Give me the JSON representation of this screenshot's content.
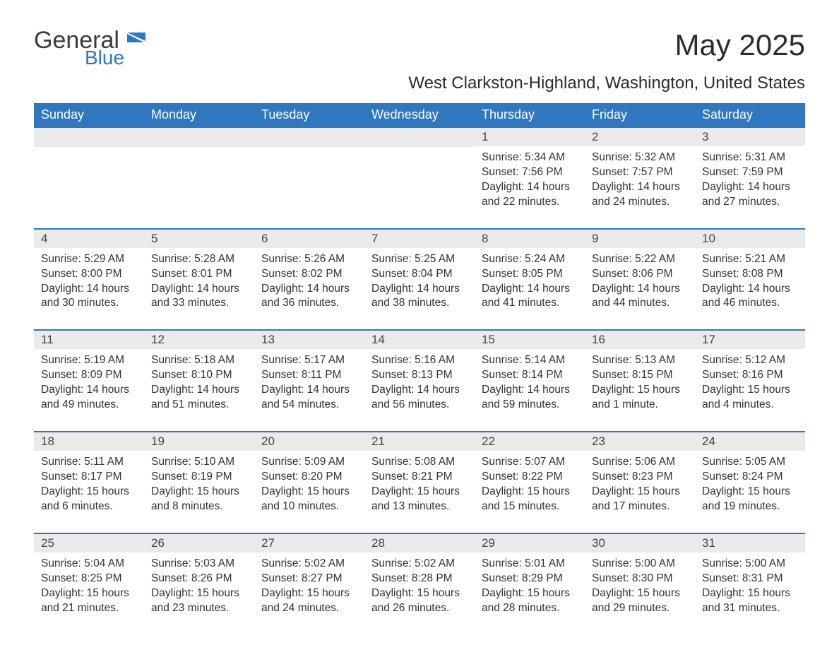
{
  "brand": {
    "general": "General",
    "blue": "Blue"
  },
  "title": "May 2025",
  "subtitle": "West Clarkston-Highland, Washington, United States",
  "colors": {
    "header_bg": "#2f78c0",
    "header_text": "#ffffff",
    "daynum_bg": "#eaeaea",
    "border": "#2f78c0",
    "text": "#333333",
    "logo_blue": "#2f78c0"
  },
  "dayHeaders": [
    "Sunday",
    "Monday",
    "Tuesday",
    "Wednesday",
    "Thursday",
    "Friday",
    "Saturday"
  ],
  "labels": {
    "sunrise": "Sunrise:",
    "sunset": "Sunset:",
    "daylight": "Daylight:"
  },
  "weeks": [
    [
      null,
      null,
      null,
      null,
      {
        "n": "1",
        "sunrise": "5:34 AM",
        "sunset": "7:56 PM",
        "daylight": "14 hours and 22 minutes."
      },
      {
        "n": "2",
        "sunrise": "5:32 AM",
        "sunset": "7:57 PM",
        "daylight": "14 hours and 24 minutes."
      },
      {
        "n": "3",
        "sunrise": "5:31 AM",
        "sunset": "7:59 PM",
        "daylight": "14 hours and 27 minutes."
      }
    ],
    [
      {
        "n": "4",
        "sunrise": "5:29 AM",
        "sunset": "8:00 PM",
        "daylight": "14 hours and 30 minutes."
      },
      {
        "n": "5",
        "sunrise": "5:28 AM",
        "sunset": "8:01 PM",
        "daylight": "14 hours and 33 minutes."
      },
      {
        "n": "6",
        "sunrise": "5:26 AM",
        "sunset": "8:02 PM",
        "daylight": "14 hours and 36 minutes."
      },
      {
        "n": "7",
        "sunrise": "5:25 AM",
        "sunset": "8:04 PM",
        "daylight": "14 hours and 38 minutes."
      },
      {
        "n": "8",
        "sunrise": "5:24 AM",
        "sunset": "8:05 PM",
        "daylight": "14 hours and 41 minutes."
      },
      {
        "n": "9",
        "sunrise": "5:22 AM",
        "sunset": "8:06 PM",
        "daylight": "14 hours and 44 minutes."
      },
      {
        "n": "10",
        "sunrise": "5:21 AM",
        "sunset": "8:08 PM",
        "daylight": "14 hours and 46 minutes."
      }
    ],
    [
      {
        "n": "11",
        "sunrise": "5:19 AM",
        "sunset": "8:09 PM",
        "daylight": "14 hours and 49 minutes."
      },
      {
        "n": "12",
        "sunrise": "5:18 AM",
        "sunset": "8:10 PM",
        "daylight": "14 hours and 51 minutes."
      },
      {
        "n": "13",
        "sunrise": "5:17 AM",
        "sunset": "8:11 PM",
        "daylight": "14 hours and 54 minutes."
      },
      {
        "n": "14",
        "sunrise": "5:16 AM",
        "sunset": "8:13 PM",
        "daylight": "14 hours and 56 minutes."
      },
      {
        "n": "15",
        "sunrise": "5:14 AM",
        "sunset": "8:14 PM",
        "daylight": "14 hours and 59 minutes."
      },
      {
        "n": "16",
        "sunrise": "5:13 AM",
        "sunset": "8:15 PM",
        "daylight": "15 hours and 1 minute."
      },
      {
        "n": "17",
        "sunrise": "5:12 AM",
        "sunset": "8:16 PM",
        "daylight": "15 hours and 4 minutes."
      }
    ],
    [
      {
        "n": "18",
        "sunrise": "5:11 AM",
        "sunset": "8:17 PM",
        "daylight": "15 hours and 6 minutes."
      },
      {
        "n": "19",
        "sunrise": "5:10 AM",
        "sunset": "8:19 PM",
        "daylight": "15 hours and 8 minutes."
      },
      {
        "n": "20",
        "sunrise": "5:09 AM",
        "sunset": "8:20 PM",
        "daylight": "15 hours and 10 minutes."
      },
      {
        "n": "21",
        "sunrise": "5:08 AM",
        "sunset": "8:21 PM",
        "daylight": "15 hours and 13 minutes."
      },
      {
        "n": "22",
        "sunrise": "5:07 AM",
        "sunset": "8:22 PM",
        "daylight": "15 hours and 15 minutes."
      },
      {
        "n": "23",
        "sunrise": "5:06 AM",
        "sunset": "8:23 PM",
        "daylight": "15 hours and 17 minutes."
      },
      {
        "n": "24",
        "sunrise": "5:05 AM",
        "sunset": "8:24 PM",
        "daylight": "15 hours and 19 minutes."
      }
    ],
    [
      {
        "n": "25",
        "sunrise": "5:04 AM",
        "sunset": "8:25 PM",
        "daylight": "15 hours and 21 minutes."
      },
      {
        "n": "26",
        "sunrise": "5:03 AM",
        "sunset": "8:26 PM",
        "daylight": "15 hours and 23 minutes."
      },
      {
        "n": "27",
        "sunrise": "5:02 AM",
        "sunset": "8:27 PM",
        "daylight": "15 hours and 24 minutes."
      },
      {
        "n": "28",
        "sunrise": "5:02 AM",
        "sunset": "8:28 PM",
        "daylight": "15 hours and 26 minutes."
      },
      {
        "n": "29",
        "sunrise": "5:01 AM",
        "sunset": "8:29 PM",
        "daylight": "15 hours and 28 minutes."
      },
      {
        "n": "30",
        "sunrise": "5:00 AM",
        "sunset": "8:30 PM",
        "daylight": "15 hours and 29 minutes."
      },
      {
        "n": "31",
        "sunrise": "5:00 AM",
        "sunset": "8:31 PM",
        "daylight": "15 hours and 31 minutes."
      }
    ]
  ]
}
